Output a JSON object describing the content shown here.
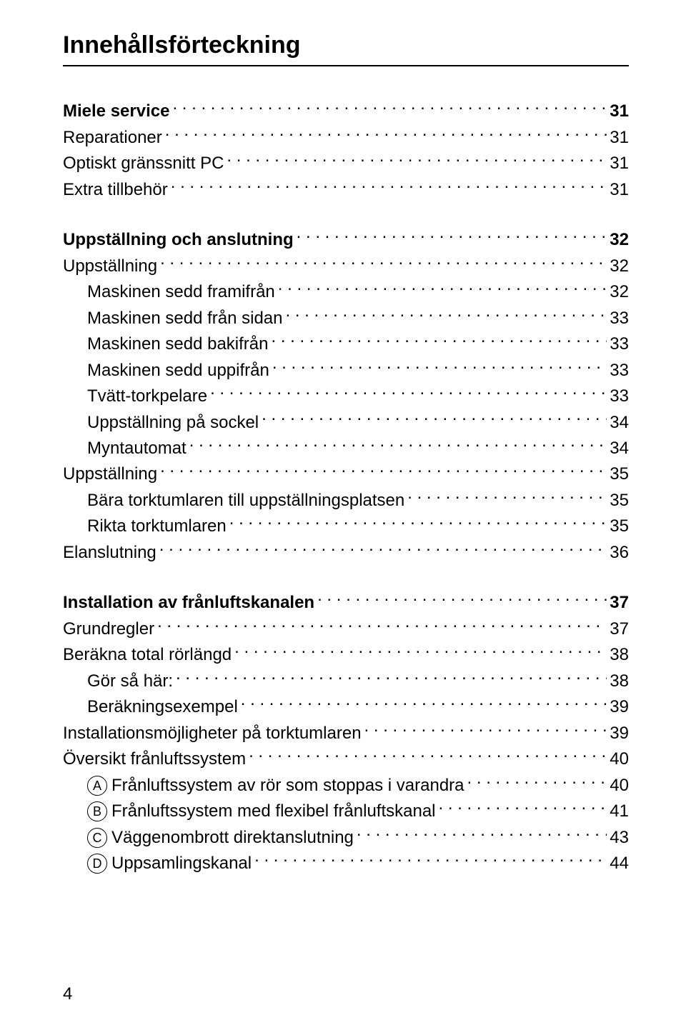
{
  "title": "Innehållsförteckning",
  "footer_page": "4",
  "entries": [
    {
      "label": "Miele service",
      "page": "31",
      "indent": 1,
      "bold": true,
      "marker": null
    },
    {
      "label": "Reparationer",
      "page": "31",
      "indent": 1,
      "bold": false,
      "marker": null
    },
    {
      "label": "Optiskt gränssnitt PC",
      "page": "31",
      "indent": 1,
      "bold": false,
      "marker": null
    },
    {
      "label": "Extra tillbehör",
      "page": "31",
      "indent": 1,
      "bold": false,
      "marker": null
    },
    {
      "gap": true
    },
    {
      "label": "Uppställning och anslutning",
      "page": "32",
      "indent": 1,
      "bold": true,
      "marker": null
    },
    {
      "label": "Uppställning",
      "page": "32",
      "indent": 1,
      "bold": false,
      "marker": null
    },
    {
      "label": "Maskinen sedd framifrån",
      "page": "32",
      "indent": 2,
      "bold": false,
      "marker": null
    },
    {
      "label": "Maskinen sedd från sidan",
      "page": "33",
      "indent": 2,
      "bold": false,
      "marker": null
    },
    {
      "label": "Maskinen sedd bakifrån",
      "page": "33",
      "indent": 2,
      "bold": false,
      "marker": null
    },
    {
      "label": "Maskinen sedd uppifrån",
      "page": "33",
      "indent": 2,
      "bold": false,
      "marker": null
    },
    {
      "label": "Tvätt-torkpelare",
      "page": "33",
      "indent": 2,
      "bold": false,
      "marker": null
    },
    {
      "label": "Uppställning på sockel",
      "page": "34",
      "indent": 2,
      "bold": false,
      "marker": null
    },
    {
      "label": "Myntautomat",
      "page": "34",
      "indent": 2,
      "bold": false,
      "marker": null
    },
    {
      "label": "Uppställning",
      "page": "35",
      "indent": 1,
      "bold": false,
      "marker": null
    },
    {
      "label": "Bära torktumlaren till uppställningsplatsen",
      "page": "35",
      "indent": 2,
      "bold": false,
      "marker": null
    },
    {
      "label": "Rikta torktumlaren",
      "page": "35",
      "indent": 2,
      "bold": false,
      "marker": null
    },
    {
      "label": "Elanslutning",
      "page": "36",
      "indent": 1,
      "bold": false,
      "marker": null
    },
    {
      "gap": true
    },
    {
      "label": "Installation av frånluftskanalen",
      "page": "37",
      "indent": 1,
      "bold": true,
      "marker": null
    },
    {
      "label": "Grundregler",
      "page": "37",
      "indent": 1,
      "bold": false,
      "marker": null
    },
    {
      "label": "Beräkna total rörlängd",
      "page": "38",
      "indent": 1,
      "bold": false,
      "marker": null
    },
    {
      "label": "Gör så här:",
      "page": "38",
      "indent": 2,
      "bold": false,
      "marker": null
    },
    {
      "label": "Beräkningsexempel",
      "page": "39",
      "indent": 2,
      "bold": false,
      "marker": null
    },
    {
      "label": "Installationsmöjligheter på torktumlaren",
      "page": "39",
      "indent": 1,
      "bold": false,
      "marker": null
    },
    {
      "label": "Översikt frånluftssystem",
      "page": "40",
      "indent": 1,
      "bold": false,
      "marker": null
    },
    {
      "label": "Frånluftssystem av rör som stoppas i varandra",
      "page": "40",
      "indent": 2,
      "bold": false,
      "marker": "A"
    },
    {
      "label": "Frånluftssystem med flexibel frånluftskanal",
      "page": "41",
      "indent": 2,
      "bold": false,
      "marker": "B"
    },
    {
      "label": "Väggenombrott direktanslutning",
      "page": "43",
      "indent": 2,
      "bold": false,
      "marker": "C"
    },
    {
      "label": "Uppsamlingskanal",
      "page": "44",
      "indent": 2,
      "bold": false,
      "marker": "D"
    }
  ]
}
